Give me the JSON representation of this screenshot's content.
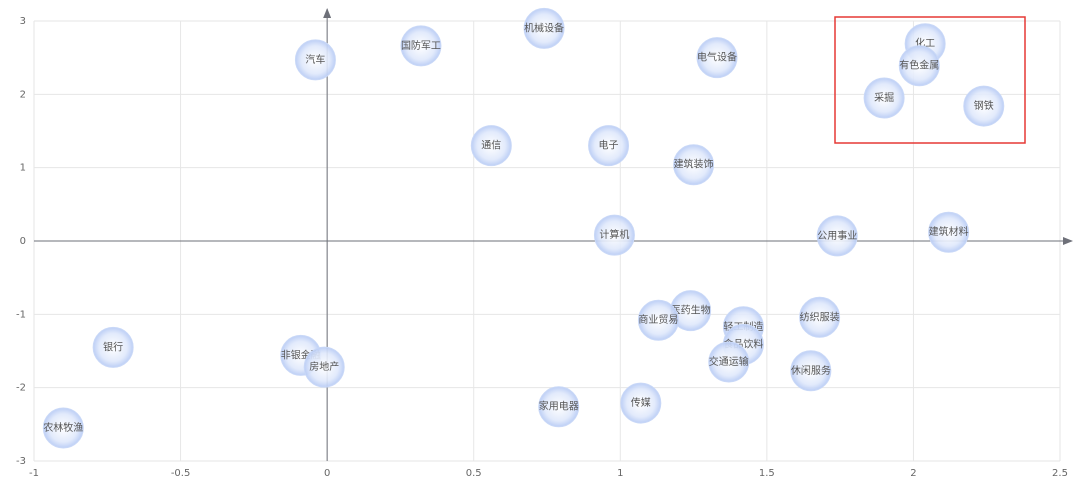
{
  "chart_data": {
    "type": "scatter",
    "point_labels": [
      "机械设备",
      "国防军工",
      "汽车",
      "电气设备",
      "化工",
      "有色金属",
      "采掘",
      "钢铁",
      "通信",
      "电子",
      "建筑装饰",
      "计算机",
      "公用事业",
      "建筑材料",
      "医药生物",
      "商业贸易",
      "纺织服装",
      "轻工制造",
      "食品饮料",
      "交通运输",
      "休闲服务",
      "银行",
      "非银金融",
      "房地产",
      "农林牧渔",
      "家用电器",
      "传媒"
    ],
    "x": [
      0.74,
      0.32,
      -0.04,
      1.33,
      2.04,
      2.02,
      1.9,
      2.24,
      0.56,
      0.96,
      1.25,
      0.98,
      1.74,
      2.12,
      1.24,
      1.13,
      1.68,
      1.42,
      1.42,
      1.37,
      1.65,
      -0.73,
      -0.09,
      -0.01,
      -0.9,
      0.79,
      1.07
    ],
    "values": [
      2.9,
      2.66,
      2.47,
      2.5,
      2.69,
      2.39,
      1.95,
      1.84,
      1.3,
      1.3,
      1.04,
      0.08,
      0.07,
      0.12,
      -0.95,
      -1.08,
      -1.04,
      -1.17,
      -1.41,
      -1.65,
      -1.77,
      -1.45,
      -1.56,
      -1.72,
      -2.55,
      -2.26,
      -2.21
    ],
    "color": "#c9d8f7",
    "xlim": [
      -1,
      2.5
    ],
    "xticks": [
      -1,
      -0.5,
      0,
      0.5,
      1,
      1.5,
      2,
      2.5
    ],
    "ylim": [
      -3,
      3
    ],
    "yticks": [
      -3,
      -2,
      -1,
      0,
      1,
      2,
      3
    ],
    "grid": true
  }
}
